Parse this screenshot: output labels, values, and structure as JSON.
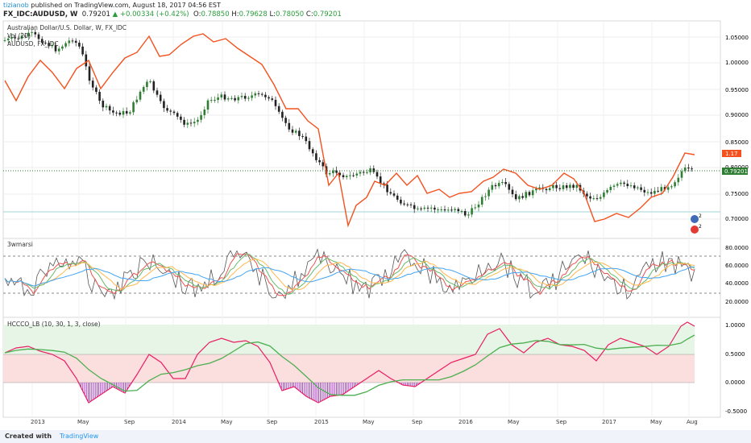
{
  "header": {
    "author": "tizianob",
    "published_text": "published on TradingView.com, August 18, 2017 04:56 EST",
    "symbol": "FX_IDC:AUDUSD, W",
    "last": "0.79201",
    "change": "▲ +0.00334 (+0.42%)",
    "open_label": "O:",
    "open": "0.78850",
    "high_label": "H:",
    "high": "0.79628",
    "low_label": "L:",
    "low": "0.78050",
    "close_label": "C:",
    "close": "0.79201"
  },
  "main_pane": {
    "title": "Australian Dollar/U.S. Dollar, W, FX_IDC",
    "legend_vol": "Vol (20)",
    "legend_compare": "AUDUSD, FX_IDC",
    "price_ticks": [
      "1.05000",
      "1.00000",
      "0.95000",
      "0.90000",
      "0.85000",
      "0.80000",
      "0.75000",
      "0.70000"
    ],
    "compare_badge": "1.17",
    "last_badge": "0.79201",
    "event_marker_1": "2",
    "event_marker_2": "2"
  },
  "rsi_pane": {
    "title": "3wmarsi",
    "ticks": [
      "80.0000",
      "60.0000",
      "40.0000",
      "20.0000"
    ]
  },
  "osc_pane": {
    "title": "HCCCO_LB (10, 30, 1, 3, close)",
    "ticks": [
      "1.0000",
      "0.5000",
      "0.0000",
      "-0.5000"
    ]
  },
  "x_axis": {
    "labels": [
      "2013",
      "May",
      "Sep",
      "2014",
      "May",
      "Sep",
      "2015",
      "May",
      "Sep",
      "2016",
      "May",
      "Sep",
      "2017",
      "May",
      "Aug"
    ]
  },
  "footer": {
    "created_with": "Created with",
    "brand": "TradingView"
  },
  "colors": {
    "candle_up": "#2e7d32",
    "candle_down": "#222222",
    "compare_line": "#f4511e",
    "rsi_line": "#555555",
    "ma_blue": "#42a5f5",
    "ma_orange": "#ffb74d",
    "ma_green": "#66bb6a",
    "ma_red": "#ef5350",
    "osc_red": "#e91e63",
    "osc_green": "#4caf50",
    "bull_zone": "#e6f5e6",
    "bear_zone": "#fbdede",
    "hist_purple": "#9c27b0"
  }
}
